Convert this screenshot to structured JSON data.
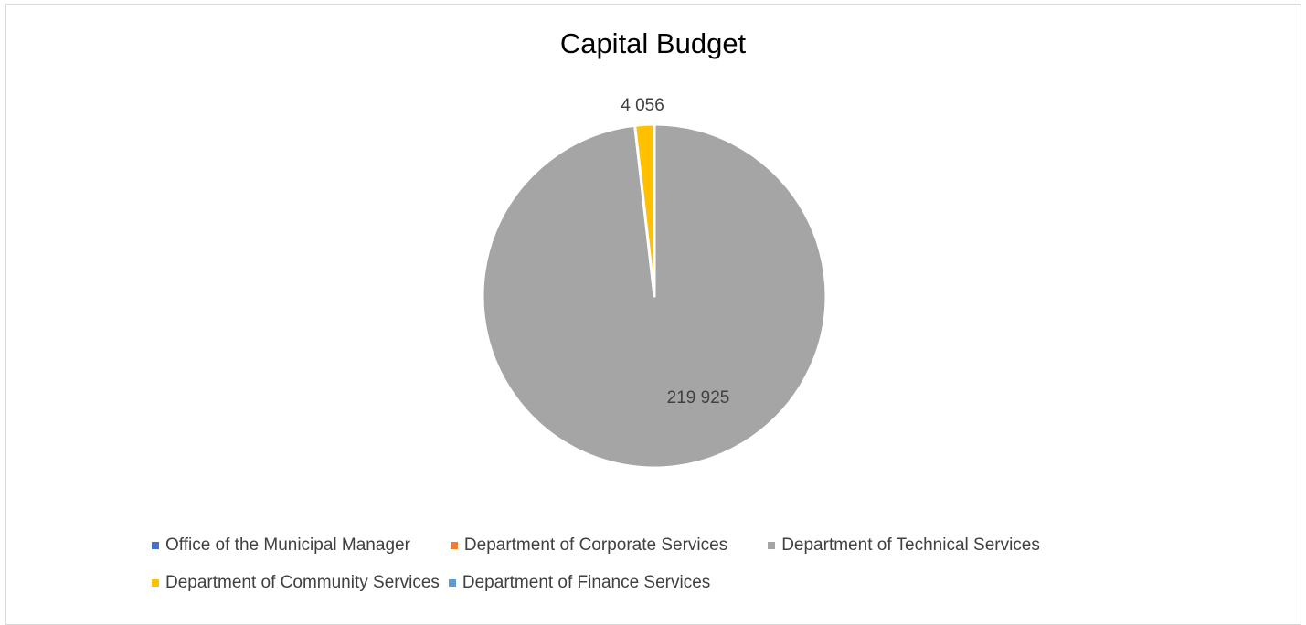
{
  "chart_data": {
    "type": "pie",
    "title": "Capital Budget",
    "slices": [
      {
        "label": "Office of the Municipal Manager",
        "value": 0,
        "color": "#4472c4",
        "data_label": ""
      },
      {
        "label": "Department of Corporate Services",
        "value": 0,
        "color": "#ed7d31",
        "data_label": ""
      },
      {
        "label": "Department of Technical Services",
        "value": 219925,
        "color": "#a5a5a5",
        "data_label": "219 925"
      },
      {
        "label": "Department of Community Services",
        "value": 4056,
        "color": "#ffc000",
        "data_label": "4 056"
      },
      {
        "label": "Department of Finance Services",
        "value": 0,
        "color": "#5b9bd5",
        "data_label": ""
      }
    ],
    "legend_position": "bottom"
  }
}
